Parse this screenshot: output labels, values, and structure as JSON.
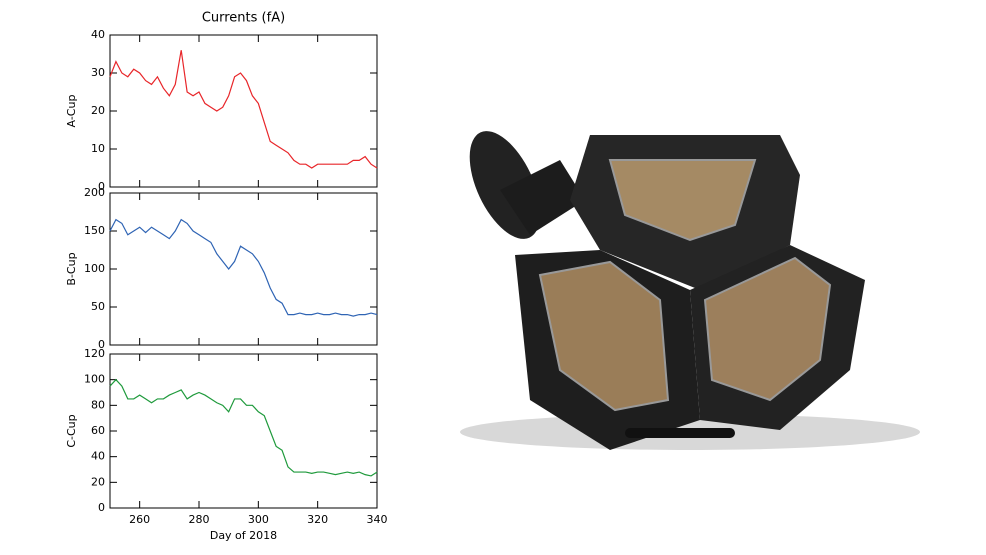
{
  "chart_data": [
    {
      "type": "line",
      "title": "Currents (fA)",
      "ylabel": "A-Cup",
      "x": [
        250,
        252,
        254,
        256,
        258,
        260,
        262,
        264,
        266,
        268,
        270,
        272,
        274,
        276,
        278,
        280,
        282,
        284,
        286,
        288,
        290,
        292,
        294,
        296,
        298,
        300,
        302,
        304,
        306,
        308,
        310,
        312,
        314,
        316,
        318,
        320,
        322,
        324,
        326,
        328,
        330,
        332,
        334,
        336,
        338,
        340
      ],
      "series": [
        {
          "name": "A-Cup",
          "color": "#e8262a",
          "values": [
            29,
            33,
            30,
            29,
            31,
            30,
            28,
            27,
            29,
            26,
            24,
            27,
            36,
            25,
            24,
            25,
            22,
            21,
            20,
            21,
            24,
            29,
            30,
            28,
            24,
            22,
            17,
            12,
            11,
            10,
            9,
            7,
            6,
            6,
            5,
            6,
            6,
            6,
            6,
            6,
            6,
            7,
            7,
            8,
            6,
            5
          ]
        }
      ],
      "xlim": [
        250,
        340
      ],
      "xticks": [
        260,
        280,
        300,
        320,
        340
      ],
      "ylim": [
        0,
        40
      ],
      "yticks": [
        0,
        10,
        20,
        30,
        40
      ]
    },
    {
      "type": "line",
      "ylabel": "B-Cup",
      "x": [
        250,
        252,
        254,
        256,
        258,
        260,
        262,
        264,
        266,
        268,
        270,
        272,
        274,
        276,
        278,
        280,
        282,
        284,
        286,
        288,
        290,
        292,
        294,
        296,
        298,
        300,
        302,
        304,
        306,
        308,
        310,
        312,
        314,
        316,
        318,
        320,
        322,
        324,
        326,
        328,
        330,
        332,
        334,
        336,
        338,
        340
      ],
      "series": [
        {
          "name": "B-Cup",
          "color": "#2f64b4",
          "values": [
            150,
            165,
            160,
            145,
            150,
            155,
            148,
            155,
            150,
            145,
            140,
            150,
            165,
            160,
            150,
            145,
            140,
            135,
            120,
            110,
            100,
            110,
            130,
            125,
            120,
            110,
            95,
            75,
            60,
            55,
            40,
            40,
            42,
            40,
            40,
            42,
            40,
            40,
            42,
            40,
            40,
            38,
            40,
            40,
            42,
            40
          ]
        }
      ],
      "xlim": [
        250,
        340
      ],
      "xticks": [
        260,
        280,
        300,
        320,
        340
      ],
      "ylim": [
        0,
        200
      ],
      "yticks": [
        0,
        50,
        100,
        150,
        200
      ]
    },
    {
      "type": "line",
      "ylabel": "C-Cup",
      "xlabel": "Day of 2018",
      "x": [
        250,
        252,
        254,
        256,
        258,
        260,
        262,
        264,
        266,
        268,
        270,
        272,
        274,
        276,
        278,
        280,
        282,
        284,
        286,
        288,
        290,
        292,
        294,
        296,
        298,
        300,
        302,
        304,
        306,
        308,
        310,
        312,
        314,
        316,
        318,
        320,
        322,
        324,
        326,
        328,
        330,
        332,
        334,
        336,
        338,
        340
      ],
      "series": [
        {
          "name": "C-Cup",
          "color": "#1f9a3c",
          "values": [
            95,
            100,
            95,
            85,
            85,
            88,
            85,
            82,
            85,
            85,
            88,
            90,
            92,
            85,
            88,
            90,
            88,
            85,
            82,
            80,
            75,
            85,
            85,
            80,
            80,
            75,
            72,
            60,
            48,
            45,
            32,
            28,
            28,
            28,
            27,
            28,
            28,
            27,
            26,
            27,
            28,
            27,
            28,
            26,
            25,
            28
          ]
        }
      ],
      "xlim": [
        250,
        340
      ],
      "xticks": [
        260,
        280,
        300,
        320,
        340
      ],
      "ylim": [
        0,
        120
      ],
      "yticks": [
        0,
        20,
        40,
        60,
        80,
        100,
        120
      ]
    }
  ]
}
